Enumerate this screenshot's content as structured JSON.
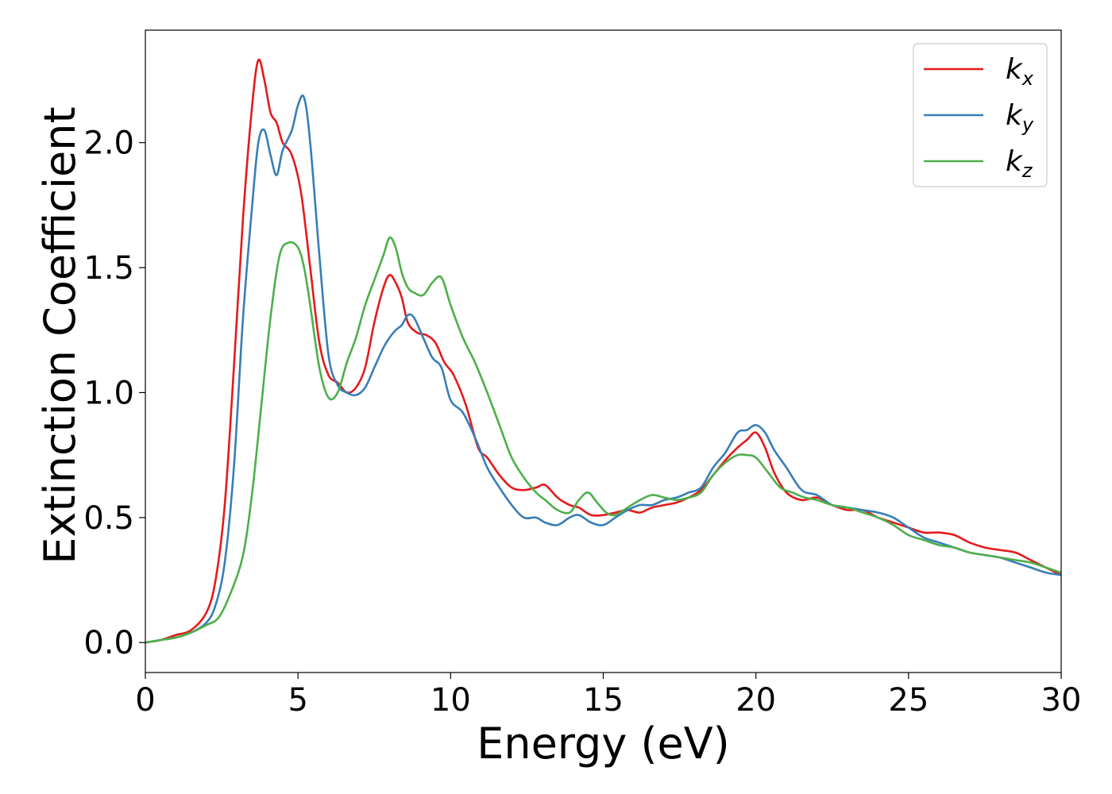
{
  "chart_data": {
    "type": "line",
    "xlabel": "Energy (eV)",
    "ylabel": "Extinction Coefficient",
    "xlim": [
      0,
      30
    ],
    "ylim": [
      -0.12,
      2.45
    ],
    "xticks": [
      0,
      5,
      10,
      15,
      20,
      25,
      30
    ],
    "xtick_labels": [
      "0",
      "5",
      "10",
      "15",
      "20",
      "25",
      "30"
    ],
    "yticks": [
      0.0,
      0.5,
      1.0,
      1.5,
      2.0
    ],
    "ytick_labels": [
      "0.0",
      "0.5",
      "1.0",
      "1.5",
      "2.0"
    ],
    "grid": false,
    "legend_position": "top-right",
    "series": [
      {
        "name": "k",
        "subscript": "x",
        "color": "#e41a1c",
        "x": [
          0,
          0.5,
          1,
          1.5,
          2,
          2.3,
          2.6,
          2.9,
          3.2,
          3.5,
          3.7,
          3.9,
          4.1,
          4.3,
          4.5,
          4.8,
          5.1,
          5.4,
          5.7,
          6.0,
          6.3,
          6.6,
          6.9,
          7.2,
          7.5,
          7.8,
          8.0,
          8.2,
          8.4,
          8.6,
          8.9,
          9.2,
          9.5,
          9.8,
          10.1,
          10.5,
          10.9,
          11.2,
          11.6,
          12.0,
          12.4,
          12.8,
          13.1,
          13.5,
          13.9,
          14.2,
          14.6,
          15.0,
          15.4,
          15.8,
          16.2,
          16.6,
          17.0,
          17.4,
          17.8,
          18.2,
          18.6,
          19.0,
          19.4,
          19.7,
          20.0,
          20.3,
          20.6,
          21.0,
          21.5,
          22.0,
          22.5,
          23.0,
          23.5,
          24.0,
          24.5,
          25.0,
          25.5,
          26.0,
          26.5,
          27.0,
          27.5,
          28.0,
          28.5,
          29.0,
          29.5,
          30.0
        ],
        "values": [
          0,
          0.01,
          0.03,
          0.05,
          0.12,
          0.25,
          0.55,
          1.1,
          1.7,
          2.15,
          2.33,
          2.25,
          2.12,
          2.08,
          2.0,
          1.95,
          1.8,
          1.5,
          1.2,
          1.07,
          1.04,
          1.0,
          1.02,
          1.1,
          1.28,
          1.42,
          1.47,
          1.44,
          1.38,
          1.28,
          1.24,
          1.23,
          1.2,
          1.12,
          1.07,
          0.95,
          0.78,
          0.74,
          0.67,
          0.62,
          0.61,
          0.62,
          0.63,
          0.58,
          0.55,
          0.54,
          0.51,
          0.51,
          0.52,
          0.53,
          0.52,
          0.54,
          0.55,
          0.56,
          0.58,
          0.61,
          0.67,
          0.73,
          0.78,
          0.81,
          0.84,
          0.78,
          0.68,
          0.6,
          0.57,
          0.58,
          0.55,
          0.53,
          0.53,
          0.5,
          0.48,
          0.46,
          0.44,
          0.44,
          0.43,
          0.4,
          0.38,
          0.37,
          0.36,
          0.33,
          0.3,
          0.27
        ]
      },
      {
        "name": "k",
        "subscript": "y",
        "color": "#377eb8",
        "x": [
          0,
          0.5,
          1,
          1.5,
          2,
          2.3,
          2.6,
          2.9,
          3.2,
          3.5,
          3.7,
          3.9,
          4.1,
          4.3,
          4.5,
          4.8,
          5.0,
          5.2,
          5.4,
          5.7,
          6.0,
          6.3,
          6.6,
          6.9,
          7.2,
          7.5,
          7.8,
          8.0,
          8.2,
          8.4,
          8.6,
          8.8,
          9.1,
          9.4,
          9.7,
          10.0,
          10.4,
          10.8,
          11.2,
          11.6,
          12.0,
          12.4,
          12.8,
          13.1,
          13.5,
          13.9,
          14.2,
          14.6,
          15.0,
          15.4,
          15.8,
          16.2,
          16.6,
          17.0,
          17.4,
          17.8,
          18.2,
          18.6,
          19.0,
          19.4,
          19.7,
          20.0,
          20.3,
          20.6,
          21.0,
          21.5,
          22.0,
          22.5,
          23.0,
          23.5,
          24.0,
          24.5,
          25.0,
          25.5,
          26.0,
          26.5,
          27.0,
          27.5,
          28.0,
          28.5,
          29.0,
          29.5,
          30.0
        ],
        "values": [
          0,
          0.01,
          0.02,
          0.04,
          0.08,
          0.15,
          0.32,
          0.7,
          1.3,
          1.75,
          2.0,
          2.05,
          1.95,
          1.87,
          1.97,
          2.05,
          2.15,
          2.18,
          2.0,
          1.55,
          1.15,
          1.03,
          1.0,
          0.99,
          1.02,
          1.1,
          1.18,
          1.22,
          1.25,
          1.27,
          1.31,
          1.3,
          1.22,
          1.14,
          1.1,
          0.97,
          0.92,
          0.82,
          0.7,
          0.62,
          0.55,
          0.5,
          0.5,
          0.48,
          0.47,
          0.5,
          0.51,
          0.48,
          0.47,
          0.5,
          0.53,
          0.55,
          0.55,
          0.57,
          0.58,
          0.6,
          0.62,
          0.7,
          0.76,
          0.84,
          0.85,
          0.87,
          0.84,
          0.77,
          0.7,
          0.61,
          0.59,
          0.55,
          0.54,
          0.53,
          0.52,
          0.5,
          0.46,
          0.42,
          0.4,
          0.38,
          0.36,
          0.35,
          0.34,
          0.32,
          0.3,
          0.28,
          0.27
        ]
      },
      {
        "name": "k",
        "subscript": "z",
        "color": "#4daf4a",
        "x": [
          0,
          0.5,
          1,
          1.5,
          2,
          2.4,
          2.8,
          3.2,
          3.5,
          3.8,
          4.1,
          4.4,
          4.7,
          5.0,
          5.2,
          5.4,
          5.7,
          6.0,
          6.3,
          6.6,
          6.9,
          7.2,
          7.5,
          7.8,
          8.0,
          8.2,
          8.4,
          8.6,
          8.8,
          9.1,
          9.4,
          9.7,
          10.0,
          10.4,
          10.8,
          11.2,
          11.6,
          12.0,
          12.4,
          12.8,
          13.1,
          13.5,
          13.9,
          14.2,
          14.5,
          14.8,
          15.1,
          15.4,
          15.8,
          16.2,
          16.6,
          17.0,
          17.4,
          17.8,
          18.2,
          18.6,
          19.0,
          19.4,
          19.7,
          20.0,
          20.4,
          20.8,
          21.2,
          21.6,
          22.0,
          22.5,
          23.0,
          23.5,
          24.0,
          24.5,
          25.0,
          25.5,
          26.0,
          26.5,
          27.0,
          27.5,
          28.0,
          28.5,
          29.0,
          29.5,
          30.0
        ],
        "values": [
          0,
          0.01,
          0.02,
          0.04,
          0.07,
          0.1,
          0.2,
          0.35,
          0.6,
          0.95,
          1.3,
          1.55,
          1.6,
          1.58,
          1.5,
          1.35,
          1.1,
          0.98,
          1.0,
          1.12,
          1.22,
          1.35,
          1.45,
          1.55,
          1.62,
          1.58,
          1.48,
          1.42,
          1.4,
          1.39,
          1.44,
          1.46,
          1.35,
          1.22,
          1.12,
          1.0,
          0.87,
          0.74,
          0.66,
          0.6,
          0.57,
          0.53,
          0.52,
          0.57,
          0.6,
          0.56,
          0.52,
          0.51,
          0.54,
          0.57,
          0.59,
          0.58,
          0.57,
          0.58,
          0.6,
          0.67,
          0.72,
          0.75,
          0.75,
          0.74,
          0.68,
          0.62,
          0.6,
          0.58,
          0.57,
          0.55,
          0.54,
          0.52,
          0.5,
          0.47,
          0.43,
          0.41,
          0.39,
          0.38,
          0.36,
          0.35,
          0.34,
          0.33,
          0.32,
          0.3,
          0.28
        ]
      }
    ]
  }
}
